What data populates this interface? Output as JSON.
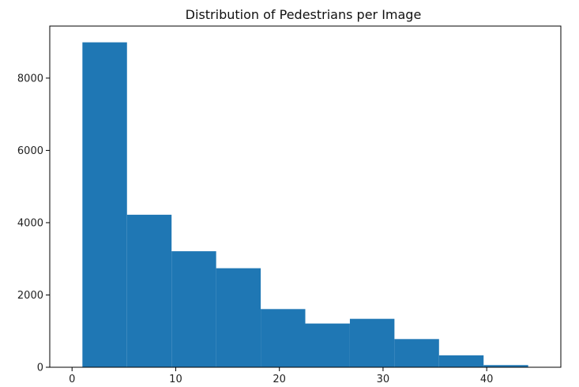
{
  "chart_data": {
    "type": "bar",
    "subtype": "histogram",
    "title": "Distribution of Pedestrians per Image",
    "xlabel": "",
    "ylabel": "",
    "bin_edges": [
      1,
      5.3,
      9.6,
      13.9,
      18.2,
      22.5,
      26.8,
      31.1,
      35.4,
      39.7,
      44
    ],
    "values": [
      8990,
      4220,
      3210,
      2740,
      1610,
      1210,
      1340,
      780,
      330,
      60
    ],
    "xlim": [
      -2.15,
      47.15
    ],
    "ylim": [
      0,
      9440
    ],
    "x_ticks": [
      0,
      10,
      20,
      30,
      40
    ],
    "x_tick_labels": [
      "0",
      "10",
      "20",
      "30",
      "40"
    ],
    "y_ticks": [
      0,
      2000,
      4000,
      6000,
      8000
    ],
    "y_tick_labels": [
      "0",
      "2000",
      "4000",
      "6000",
      "8000"
    ],
    "grid": false,
    "legend": "none",
    "bar_color": "#1f77b4"
  }
}
